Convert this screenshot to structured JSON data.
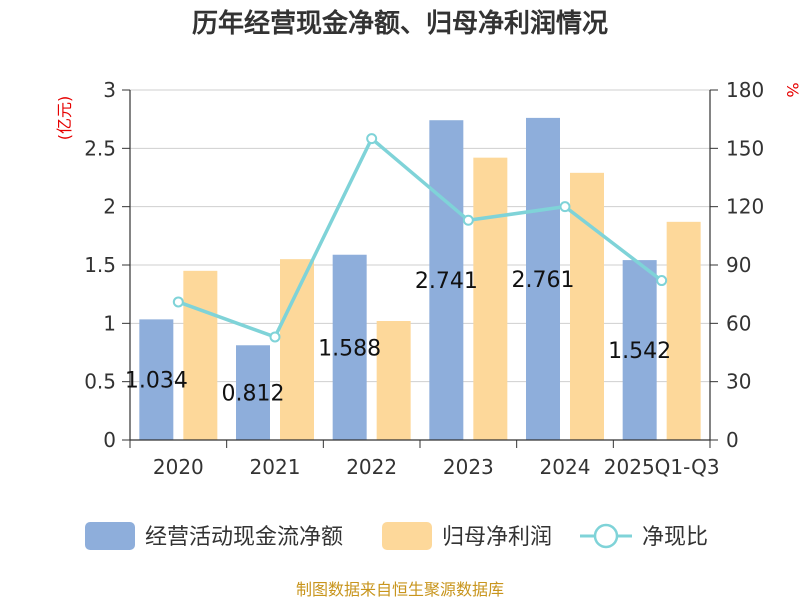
{
  "chart_data": {
    "type": "bar",
    "title": "历年经营现金净额、归母净利润情况",
    "categories": [
      "2020",
      "2021",
      "2022",
      "2023",
      "2024",
      "2025Q1-Q3"
    ],
    "series": [
      {
        "name": "经营活动现金流净额",
        "kind": "bar",
        "axis": "left",
        "color": "#8eaedb",
        "values": [
          1.034,
          0.812,
          1.588,
          2.741,
          2.761,
          1.542
        ],
        "labels": [
          "1.034",
          "0.812",
          "1.588",
          "2.741",
          "2.761",
          "1.542"
        ]
      },
      {
        "name": "归母净利润",
        "kind": "bar",
        "axis": "left",
        "color": "#fdd89a",
        "values": [
          1.45,
          1.55,
          1.02,
          2.42,
          2.29,
          1.87
        ]
      },
      {
        "name": "净现比",
        "kind": "line",
        "axis": "right",
        "color": "#7fd3d8",
        "values": [
          71,
          53,
          155,
          113,
          120,
          82
        ]
      }
    ],
    "yleft": {
      "label": "(亿元)",
      "range": [
        0,
        3
      ],
      "ticks": [
        "0",
        "0.5",
        "1",
        "1.5",
        "2",
        "2.5",
        "3"
      ]
    },
    "yright": {
      "label": "%",
      "range": [
        0,
        180
      ],
      "ticks": [
        "0",
        "30",
        "60",
        "90",
        "120",
        "150",
        "180"
      ]
    },
    "grid": true,
    "legend": "bottom"
  },
  "source": "制图数据来自恒生聚源数据库"
}
